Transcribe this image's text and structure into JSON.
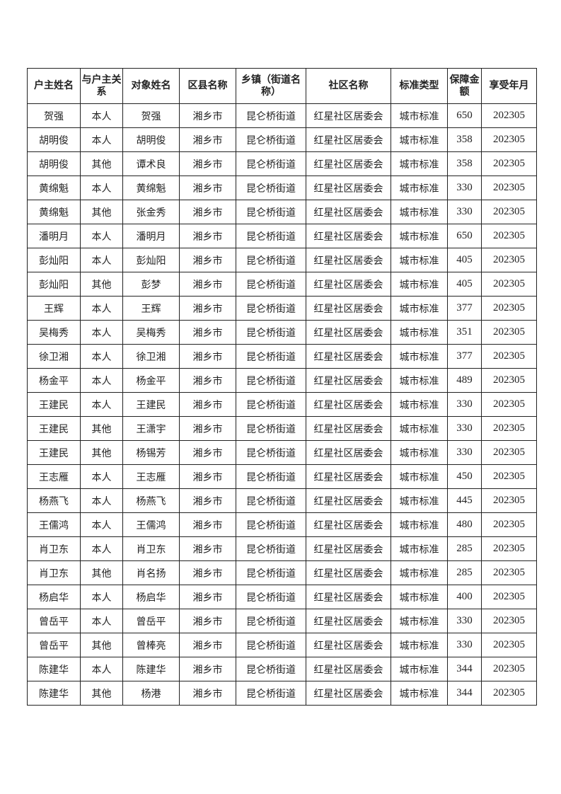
{
  "table": {
    "headers": [
      "户主姓名",
      "与户主关系",
      "对象姓名",
      "区县名称",
      "乡镇（街道名称）",
      "社区名称",
      "标准类型",
      "保障金额",
      "享受年月"
    ],
    "rows": [
      [
        "贺强",
        "本人",
        "贺强",
        "湘乡市",
        "昆仑桥街道",
        "红星社区居委会",
        "城市标准",
        "650",
        "202305"
      ],
      [
        "胡明俊",
        "本人",
        "胡明俊",
        "湘乡市",
        "昆仑桥街道",
        "红星社区居委会",
        "城市标准",
        "358",
        "202305"
      ],
      [
        "胡明俊",
        "其他",
        "谭术良",
        "湘乡市",
        "昆仑桥街道",
        "红星社区居委会",
        "城市标准",
        "358",
        "202305"
      ],
      [
        "黄绵魁",
        "本人",
        "黄绵魁",
        "湘乡市",
        "昆仑桥街道",
        "红星社区居委会",
        "城市标准",
        "330",
        "202305"
      ],
      [
        "黄绵魁",
        "其他",
        "张金秀",
        "湘乡市",
        "昆仑桥街道",
        "红星社区居委会",
        "城市标准",
        "330",
        "202305"
      ],
      [
        "潘明月",
        "本人",
        "潘明月",
        "湘乡市",
        "昆仑桥街道",
        "红星社区居委会",
        "城市标准",
        "650",
        "202305"
      ],
      [
        "彭灿阳",
        "本人",
        "彭灿阳",
        "湘乡市",
        "昆仑桥街道",
        "红星社区居委会",
        "城市标准",
        "405",
        "202305"
      ],
      [
        "彭灿阳",
        "其他",
        "彭梦",
        "湘乡市",
        "昆仑桥街道",
        "红星社区居委会",
        "城市标准",
        "405",
        "202305"
      ],
      [
        "王辉",
        "本人",
        "王辉",
        "湘乡市",
        "昆仑桥街道",
        "红星社区居委会",
        "城市标准",
        "377",
        "202305"
      ],
      [
        "吴梅秀",
        "本人",
        "吴梅秀",
        "湘乡市",
        "昆仑桥街道",
        "红星社区居委会",
        "城市标准",
        "351",
        "202305"
      ],
      [
        "徐卫湘",
        "本人",
        "徐卫湘",
        "湘乡市",
        "昆仑桥街道",
        "红星社区居委会",
        "城市标准",
        "377",
        "202305"
      ],
      [
        "杨金平",
        "本人",
        "杨金平",
        "湘乡市",
        "昆仑桥街道",
        "红星社区居委会",
        "城市标准",
        "489",
        "202305"
      ],
      [
        "王建民",
        "本人",
        "王建民",
        "湘乡市",
        "昆仑桥街道",
        "红星社区居委会",
        "城市标准",
        "330",
        "202305"
      ],
      [
        "王建民",
        "其他",
        "王潇宇",
        "湘乡市",
        "昆仑桥街道",
        "红星社区居委会",
        "城市标准",
        "330",
        "202305"
      ],
      [
        "王建民",
        "其他",
        "杨锡芳",
        "湘乡市",
        "昆仑桥街道",
        "红星社区居委会",
        "城市标准",
        "330",
        "202305"
      ],
      [
        "王志雁",
        "本人",
        "王志雁",
        "湘乡市",
        "昆仑桥街道",
        "红星社区居委会",
        "城市标准",
        "450",
        "202305"
      ],
      [
        "杨燕飞",
        "本人",
        "杨燕飞",
        "湘乡市",
        "昆仑桥街道",
        "红星社区居委会",
        "城市标准",
        "445",
        "202305"
      ],
      [
        "王儒鸿",
        "本人",
        "王儒鸿",
        "湘乡市",
        "昆仑桥街道",
        "红星社区居委会",
        "城市标准",
        "480",
        "202305"
      ],
      [
        "肖卫东",
        "本人",
        "肖卫东",
        "湘乡市",
        "昆仑桥街道",
        "红星社区居委会",
        "城市标准",
        "285",
        "202305"
      ],
      [
        "肖卫东",
        "其他",
        "肖名扬",
        "湘乡市",
        "昆仑桥街道",
        "红星社区居委会",
        "城市标准",
        "285",
        "202305"
      ],
      [
        "杨启华",
        "本人",
        "杨启华",
        "湘乡市",
        "昆仑桥街道",
        "红星社区居委会",
        "城市标准",
        "400",
        "202305"
      ],
      [
        "曾岳平",
        "本人",
        "曾岳平",
        "湘乡市",
        "昆仑桥街道",
        "红星社区居委会",
        "城市标准",
        "330",
        "202305"
      ],
      [
        "曾岳平",
        "其他",
        "曾棒亮",
        "湘乡市",
        "昆仑桥街道",
        "红星社区居委会",
        "城市标准",
        "330",
        "202305"
      ],
      [
        "陈建华",
        "本人",
        "陈建华",
        "湘乡市",
        "昆仑桥街道",
        "红星社区居委会",
        "城市标准",
        "344",
        "202305"
      ],
      [
        "陈建华",
        "其他",
        "杨港",
        "湘乡市",
        "昆仑桥街道",
        "红星社区居委会",
        "城市标准",
        "344",
        "202305"
      ]
    ]
  }
}
